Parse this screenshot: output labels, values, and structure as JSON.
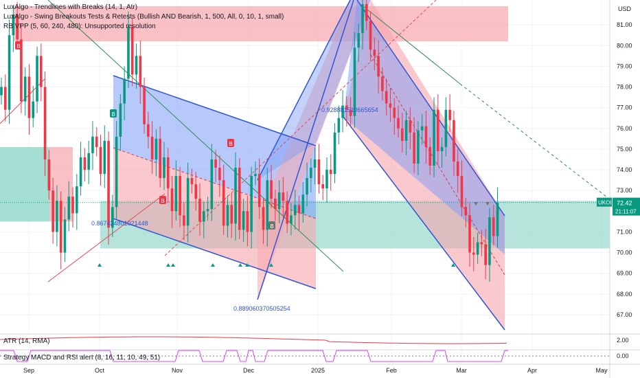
{
  "legends": [
    "LuxAlgo - Trendlines with Breaks (14, 1, Atr)",
    "LuxAlgo - Swing Breakouts Tests & Retests (Bullish AND Bearish, 1, 500, All, 0, 10, 1, small)",
    "RB VPP (5, 60, 240, 480): Unsupported resolution"
  ],
  "atr_label": "ATR (14, RMA)",
  "strategy_label": "Strategy MACD and RSI alert (8, 16, 11, 10, 49, 51)",
  "currency": "USD",
  "symbol_label": "UKOIL",
  "price_label": "72.42",
  "timer_label": "21:11:07",
  "annotations": {
    "a1": "0.928881510665654",
    "a2": "0.867424801021448",
    "a3": "0.889060370505254"
  },
  "colors": {
    "up": "#089981",
    "down": "#f23645",
    "blue_fill": "#7b9cf5",
    "red_fill": "#f7a5ad",
    "teal_fill": "#8fd6c8",
    "trend_green": "#2e8b57"
  },
  "chart_data": {
    "type": "candlestick",
    "x_ticks": [
      "Sep",
      "Oct",
      "Nov",
      "Dec",
      "2025",
      "Feb",
      "Mar",
      "Apr",
      "May"
    ],
    "y_ticks": [
      67.0,
      68.0,
      69.0,
      70.0,
      71.0,
      73.0,
      74.0,
      75.0,
      76.0,
      77.0,
      78.0,
      79.0,
      80.0,
      81.0
    ],
    "ylim": [
      66.2,
      82.2
    ],
    "last_price": 72.42,
    "atr_ticks": [
      2.0,
      0.0
    ],
    "strategy_ticks": [
      0.0
    ],
    "marker_B": [
      "B",
      "B",
      "B",
      "B",
      "B"
    ],
    "closes": [
      78.0,
      76.9,
      80.5,
      81.5,
      80.3,
      77.3,
      78.5,
      76.5,
      77.3,
      79.5,
      78.0,
      74.5,
      73.0,
      71.0,
      72.5,
      70.0,
      71.6,
      72.7,
      71.9,
      73.2,
      74.6,
      74.0,
      74.8,
      75.6,
      75.1,
      73.8,
      75.4,
      71.2,
      72.2,
      75.6,
      77.2,
      78.4,
      80.9,
      78.6,
      79.5,
      78.0,
      76.2,
      75.6,
      74.5,
      75.5,
      73.6,
      74.6,
      73.1,
      72.0,
      73.7,
      71.8,
      71.3,
      73.6,
      73.3,
      72.6,
      71.5,
      72.0,
      72.1,
      74.5,
      74.1,
      73.5,
      71.3,
      72.3,
      71.4,
      74.1,
      71.1,
      72.0,
      71.0,
      73.7,
      73.8,
      72.2,
      71.1,
      73.5,
      72.6,
      72.1,
      72.9,
      72.5,
      71.4,
      71.8,
      72.3,
      71.9,
      72.8,
      73.6,
      74.1,
      74.5,
      73.3,
      73.1,
      74.0,
      73.8,
      75.8,
      76.5,
      77.1,
      76.9,
      76.6,
      79.9,
      80.6,
      82.0,
      81.2,
      79.8,
      79.5,
      78.5,
      77.8,
      77.2,
      77.0,
      76.5,
      76.0,
      75.4,
      76.4,
      75.8,
      74.3,
      75.9,
      76.1,
      75.1,
      74.2,
      76.9,
      74.9,
      75.1,
      76.9,
      76.4,
      74.4,
      73.7,
      72.2,
      71.8,
      70.0,
      69.9,
      70.5,
      70.4,
      69.4,
      71.7,
      70.8,
      72.4
    ]
  }
}
